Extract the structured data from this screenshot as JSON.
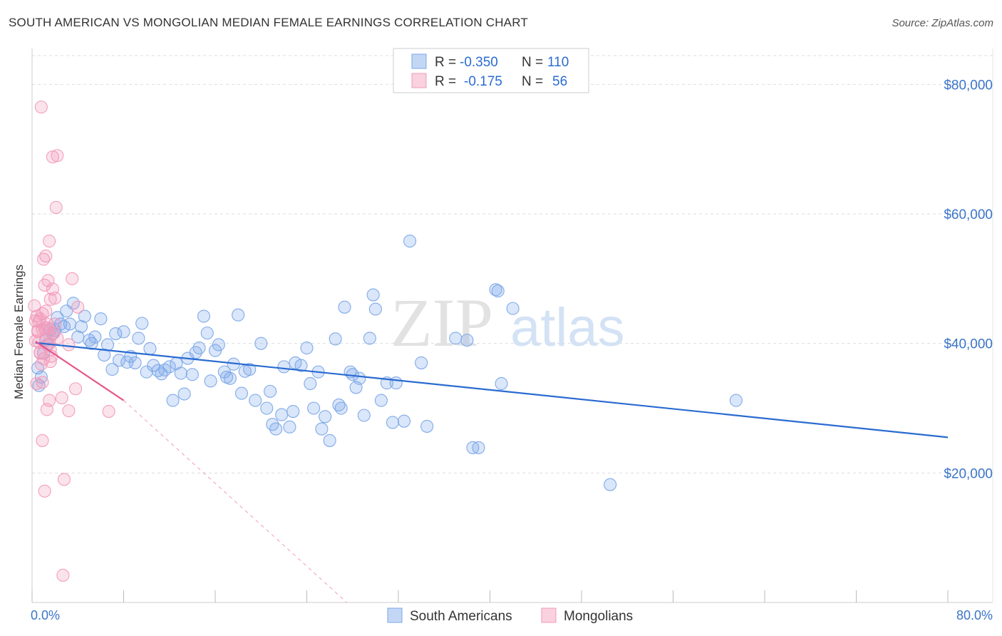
{
  "title": "SOUTH AMERICAN VS MONGOLIAN MEDIAN FEMALE EARNINGS CORRELATION CHART",
  "source": "Source: ZipAtlas.com",
  "watermark": {
    "zip": "ZIP",
    "atlas": "atlas"
  },
  "legend_box": {
    "rows": [
      {
        "r_label": "R =",
        "r_value": "-0.350",
        "n_label": "N =",
        "n_value": "110",
        "color": "#7aa7e8"
      },
      {
        "r_label": "R =",
        "r_value": "-0.175",
        "n_label": "N =",
        "n_value": "56",
        "color": "#f29ab9"
      }
    ]
  },
  "chart_data": {
    "type": "scatter",
    "title": "SOUTH AMERICAN VS MONGOLIAN MEDIAN FEMALE EARNINGS CORRELATION CHART",
    "xlabel": "",
    "ylabel": "Median Female Earnings",
    "xlim": [
      0,
      80
    ],
    "ylim": [
      0,
      84000
    ],
    "x_tick_labels": [
      "0.0%",
      "80.0%"
    ],
    "y_ticks": [
      20000,
      40000,
      60000,
      80000
    ],
    "y_tick_labels": [
      "$20,000",
      "$40,000",
      "$60,000",
      "$80,000"
    ],
    "grid": true,
    "legend_position": "bottom-center",
    "series": [
      {
        "name": "South Americans",
        "color": "#7aa7e8",
        "line_color": "#2a6bd1",
        "trend": {
          "x": [
            0.3,
            80
          ],
          "y": [
            40100,
            25500
          ],
          "dashed_extension": false
        },
        "points": [
          [
            0.5,
            36200
          ],
          [
            0.6,
            33500
          ],
          [
            0.8,
            34800
          ],
          [
            1.0,
            38500
          ],
          [
            1.2,
            40500
          ],
          [
            1.4,
            39800
          ],
          [
            1.6,
            42200
          ],
          [
            1.8,
            41500
          ],
          [
            2.0,
            42000
          ],
          [
            2.2,
            44000
          ],
          [
            2.5,
            43000
          ],
          [
            2.8,
            42600
          ],
          [
            3.0,
            45000
          ],
          [
            3.3,
            43000
          ],
          [
            3.6,
            46200
          ],
          [
            4.0,
            41000
          ],
          [
            4.3,
            42600
          ],
          [
            4.6,
            44200
          ],
          [
            5.0,
            40500
          ],
          [
            5.2,
            40000
          ],
          [
            5.5,
            41000
          ],
          [
            6.0,
            43800
          ],
          [
            6.3,
            38200
          ],
          [
            6.6,
            39800
          ],
          [
            7.0,
            36000
          ],
          [
            7.3,
            41500
          ],
          [
            7.6,
            37400
          ],
          [
            8.0,
            41800
          ],
          [
            8.3,
            37100
          ],
          [
            8.6,
            38000
          ],
          [
            9.0,
            37000
          ],
          [
            9.3,
            40800
          ],
          [
            9.6,
            43100
          ],
          [
            10.0,
            35600
          ],
          [
            10.3,
            39200
          ],
          [
            10.6,
            36600
          ],
          [
            11.0,
            35800
          ],
          [
            11.3,
            35300
          ],
          [
            11.6,
            35900
          ],
          [
            12.0,
            36400
          ],
          [
            12.3,
            31200
          ],
          [
            12.6,
            36900
          ],
          [
            13.0,
            35400
          ],
          [
            13.3,
            32200
          ],
          [
            13.6,
            37700
          ],
          [
            14.0,
            35200
          ],
          [
            14.3,
            38600
          ],
          [
            14.6,
            39300
          ],
          [
            15.0,
            44200
          ],
          [
            15.3,
            41600
          ],
          [
            15.6,
            34200
          ],
          [
            16.0,
            38900
          ],
          [
            16.3,
            39800
          ],
          [
            16.8,
            35600
          ],
          [
            17.0,
            34800
          ],
          [
            17.3,
            34600
          ],
          [
            17.6,
            36800
          ],
          [
            18.0,
            44400
          ],
          [
            18.3,
            32300
          ],
          [
            18.6,
            35700
          ],
          [
            19.0,
            36000
          ],
          [
            19.5,
            31200
          ],
          [
            20.0,
            40000
          ],
          [
            20.5,
            30000
          ],
          [
            20.8,
            32600
          ],
          [
            21.0,
            27500
          ],
          [
            21.3,
            26800
          ],
          [
            21.8,
            29000
          ],
          [
            22.0,
            36400
          ],
          [
            22.5,
            27100
          ],
          [
            22.8,
            29500
          ],
          [
            23.0,
            37000
          ],
          [
            23.5,
            36600
          ],
          [
            24.0,
            39300
          ],
          [
            24.3,
            33800
          ],
          [
            24.6,
            30000
          ],
          [
            25.0,
            35600
          ],
          [
            25.3,
            26800
          ],
          [
            25.6,
            28700
          ],
          [
            26.0,
            25000
          ],
          [
            26.5,
            40700
          ],
          [
            26.8,
            30500
          ],
          [
            27.0,
            30000
          ],
          [
            27.3,
            45600
          ],
          [
            27.8,
            35600
          ],
          [
            28.0,
            35200
          ],
          [
            28.3,
            33200
          ],
          [
            28.6,
            34600
          ],
          [
            29.0,
            28900
          ],
          [
            29.5,
            40800
          ],
          [
            29.8,
            47500
          ],
          [
            30.0,
            45300
          ],
          [
            30.5,
            31200
          ],
          [
            31.0,
            33900
          ],
          [
            31.5,
            27800
          ],
          [
            31.8,
            33900
          ],
          [
            32.5,
            28000
          ],
          [
            33.0,
            55800
          ],
          [
            34.0,
            37000
          ],
          [
            34.5,
            27200
          ],
          [
            37.0,
            40800
          ],
          [
            38.0,
            40500
          ],
          [
            38.5,
            23900
          ],
          [
            39.0,
            23900
          ],
          [
            40.5,
            48300
          ],
          [
            41.0,
            33800
          ],
          [
            42.0,
            45400
          ],
          [
            50.5,
            18200
          ],
          [
            61.5,
            31200
          ],
          [
            40.7,
            48100
          ]
        ]
      },
      {
        "name": "Mongolians",
        "color": "#f29ab9",
        "line_color": "#e5578a",
        "trend": {
          "x": [
            0.3,
            8.0
          ],
          "y": [
            40300,
            31200
          ],
          "dashed_extension": true,
          "dashed_to": [
            27.5,
            0
          ]
        },
        "points": [
          [
            0.2,
            45800
          ],
          [
            0.3,
            43500
          ],
          [
            0.4,
            44200
          ],
          [
            0.5,
            42000
          ],
          [
            0.6,
            40200
          ],
          [
            0.7,
            38500
          ],
          [
            0.8,
            36800
          ],
          [
            0.9,
            34000
          ],
          [
            1.0,
            53000
          ],
          [
            1.1,
            49000
          ],
          [
            1.2,
            45000
          ],
          [
            1.3,
            43000
          ],
          [
            1.4,
            42400
          ],
          [
            1.5,
            40000
          ],
          [
            1.6,
            39000
          ],
          [
            1.7,
            38000
          ],
          [
            0.8,
            76500
          ],
          [
            1.8,
            68800
          ],
          [
            2.2,
            69000
          ],
          [
            2.1,
            61000
          ],
          [
            1.5,
            55800
          ],
          [
            1.2,
            53500
          ],
          [
            1.8,
            48400
          ],
          [
            1.4,
            49700
          ],
          [
            2.0,
            47000
          ],
          [
            1.6,
            46800
          ],
          [
            0.9,
            44600
          ],
          [
            0.6,
            43400
          ],
          [
            1.1,
            42400
          ],
          [
            0.5,
            41800
          ],
          [
            1.9,
            41600
          ],
          [
            2.2,
            40800
          ],
          [
            1.3,
            39800
          ],
          [
            0.7,
            38600
          ],
          [
            1.0,
            37600
          ],
          [
            1.6,
            37200
          ],
          [
            3.5,
            50000
          ],
          [
            4.0,
            45600
          ],
          [
            3.2,
            39800
          ],
          [
            3.8,
            33000
          ],
          [
            3.2,
            29600
          ],
          [
            1.5,
            31200
          ],
          [
            2.6,
            31600
          ],
          [
            1.3,
            29800
          ],
          [
            0.9,
            25000
          ],
          [
            2.8,
            19000
          ],
          [
            1.1,
            17200
          ],
          [
            2.7,
            4200
          ],
          [
            6.7,
            29500
          ],
          [
            0.4,
            33800
          ],
          [
            0.7,
            43800
          ],
          [
            1.2,
            42000
          ],
          [
            0.9,
            42200
          ],
          [
            1.6,
            41000
          ],
          [
            2.0,
            43000
          ],
          [
            0.3,
            40400
          ]
        ]
      }
    ]
  }
}
